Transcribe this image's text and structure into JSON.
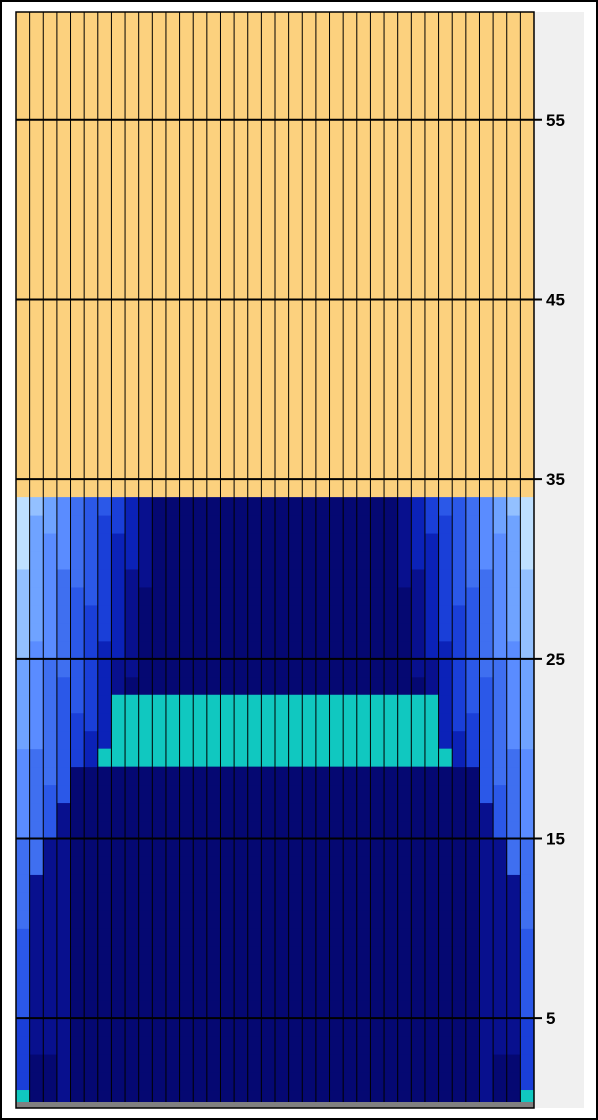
{
  "colors": {
    "background": "#fcd17e",
    "grid": "#000000",
    "axis_panel": "#f0f0f0",
    "frame": "#000000",
    "base": "#808080",
    "highlight": "#10c8c0"
  },
  "chart_data": {
    "type": "heatmap",
    "title": "",
    "xlabel": "",
    "ylabel": "",
    "ylim": [
      0,
      61
    ],
    "ytick_labels": [
      "5",
      "15",
      "25",
      "35",
      "45",
      "55"
    ],
    "ytick_values": [
      5,
      15,
      25,
      35,
      45,
      55
    ],
    "columns": 38,
    "fill_top": 34,
    "color_scale": [
      "#e8fbff",
      "#bfe0ff",
      "#93c0ff",
      "#6fa3ff",
      "#5a8cff",
      "#3f6ff0",
      "#2b58e8",
      "#1a3fd8",
      "#0b22b8",
      "#08108e",
      "#050872"
    ],
    "columns_profile": [
      {
        "index": 0,
        "base_cell": "highlight",
        "level": "cyan-edge"
      },
      {
        "index": 1,
        "level": "edge"
      },
      {
        "index": 2,
        "level": "deep-lower"
      },
      {
        "index": 3,
        "level": "deep-lower"
      },
      {
        "index": 4,
        "level": "transition"
      },
      {
        "index": 5,
        "level": "transition"
      },
      {
        "index": 6,
        "level": "cyan-step"
      },
      {
        "index": 35,
        "level": "transition"
      },
      {
        "index": 36,
        "level": "deep-lower"
      },
      {
        "index": 37,
        "base_cell": "highlight",
        "level": "cyan-edge"
      }
    ],
    "highlight_band": {
      "y_from": 19,
      "y_to": 23,
      "label": ""
    }
  }
}
